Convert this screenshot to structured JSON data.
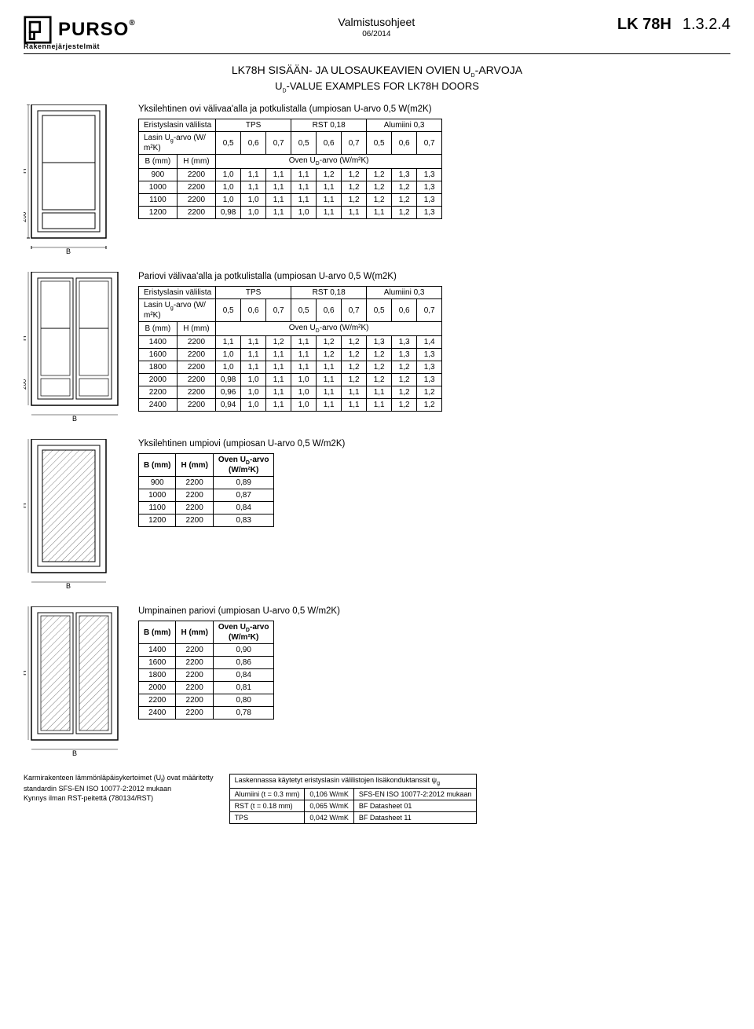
{
  "header": {
    "brand": "PURSO",
    "brand_sub": "Rakennejärjestelmät",
    "doc_type": "Valmistusohjeet",
    "date": "06/2014",
    "code": "LK 78H",
    "version": "1.3.2.4"
  },
  "title": {
    "main": "LK78H SISÄÄN- JA ULOSAUKEAVIEN OVIEN U_D-ARVOJA",
    "sub": "U_D-VALUE EXAMPLES FOR LK78H DOORS"
  },
  "sec1": {
    "title": "Yksilehtinen ovi välivaa'alla ja potkulistalla (umpiosan U-arvo 0,5 W(m2K)",
    "spacer_label": "Eristyslasin välilista",
    "spacer_cols": [
      "TPS",
      "RST 0,18",
      "Alumiini 0,3"
    ],
    "ug_label": "Lasin Ug-arvo (W/m²K)",
    "ug_vals": [
      "0,5",
      "0,6",
      "0,7",
      "0,5",
      "0,6",
      "0,7",
      "0,5",
      "0,6",
      "0,7"
    ],
    "bh_label_b": "B (mm)",
    "bh_label_h": "H (mm)",
    "ud_label": "Oven U_D-arvo (W/m²K)",
    "rows": [
      {
        "b": "900",
        "h": "2200",
        "v": [
          "1,0",
          "1,1",
          "1,1",
          "1,1",
          "1,2",
          "1,2",
          "1,2",
          "1,3",
          "1,3"
        ]
      },
      {
        "b": "1000",
        "h": "2200",
        "v": [
          "1,0",
          "1,1",
          "1,1",
          "1,1",
          "1,1",
          "1,2",
          "1,2",
          "1,2",
          "1,3"
        ]
      },
      {
        "b": "1100",
        "h": "2200",
        "v": [
          "1,0",
          "1,0",
          "1,1",
          "1,1",
          "1,1",
          "1,2",
          "1,2",
          "1,2",
          "1,3"
        ]
      },
      {
        "b": "1200",
        "h": "2200",
        "v": [
          "0,98",
          "1,0",
          "1,1",
          "1,0",
          "1,1",
          "1,1",
          "1,1",
          "1,2",
          "1,3"
        ]
      }
    ]
  },
  "sec2": {
    "title": "Pariovi välivaa'alla ja potkulistalla (umpiosan U-arvo 0,5 W(m2K)",
    "spacer_label": "Eristyslasin välilista",
    "spacer_cols": [
      "TPS",
      "RST 0,18",
      "Alumiini 0,3"
    ],
    "ug_label": "Lasin Ug-arvo (W/m²K)",
    "ug_vals": [
      "0,5",
      "0,6",
      "0,7",
      "0,5",
      "0,6",
      "0,7",
      "0,5",
      "0,6",
      "0,7"
    ],
    "bh_label_b": "B (mm)",
    "bh_label_h": "H (mm)",
    "ud_label": "Oven U_D-arvo (W/m²K)",
    "rows": [
      {
        "b": "1400",
        "h": "2200",
        "v": [
          "1,1",
          "1,1",
          "1,2",
          "1,1",
          "1,2",
          "1,2",
          "1,3",
          "1,3",
          "1,4"
        ]
      },
      {
        "b": "1600",
        "h": "2200",
        "v": [
          "1,0",
          "1,1",
          "1,1",
          "1,1",
          "1,2",
          "1,2",
          "1,2",
          "1,3",
          "1,3"
        ]
      },
      {
        "b": "1800",
        "h": "2200",
        "v": [
          "1,0",
          "1,1",
          "1,1",
          "1,1",
          "1,1",
          "1,2",
          "1,2",
          "1,2",
          "1,3"
        ]
      },
      {
        "b": "2000",
        "h": "2200",
        "v": [
          "0,98",
          "1,0",
          "1,1",
          "1,0",
          "1,1",
          "1,2",
          "1,2",
          "1,2",
          "1,3"
        ]
      },
      {
        "b": "2200",
        "h": "2200",
        "v": [
          "0,96",
          "1,0",
          "1,1",
          "1,0",
          "1,1",
          "1,1",
          "1,1",
          "1,2",
          "1,2"
        ]
      },
      {
        "b": "2400",
        "h": "2200",
        "v": [
          "0,94",
          "1,0",
          "1,1",
          "1,0",
          "1,1",
          "1,1",
          "1,1",
          "1,2",
          "1,2"
        ]
      }
    ]
  },
  "sec3": {
    "title": "Yksilehtinen umpiovi (umpiosan U-arvo 0,5 W/m2K)",
    "cols": [
      "B (mm)",
      "H (mm)",
      "Oven U_D-arvo (W/m²K)"
    ],
    "rows": [
      {
        "b": "900",
        "h": "2200",
        "u": "0,89"
      },
      {
        "b": "1000",
        "h": "2200",
        "u": "0,87"
      },
      {
        "b": "1100",
        "h": "2200",
        "u": "0,84"
      },
      {
        "b": "1200",
        "h": "2200",
        "u": "0,83"
      }
    ]
  },
  "sec4": {
    "title": "Umpinainen pariovi (umpiosan U-arvo 0,5 W/m2K)",
    "cols": [
      "B (mm)",
      "H (mm)",
      "Oven U_D-arvo (W/m²K)"
    ],
    "rows": [
      {
        "b": "1400",
        "h": "2200",
        "u": "0,90"
      },
      {
        "b": "1600",
        "h": "2200",
        "u": "0,86"
      },
      {
        "b": "1800",
        "h": "2200",
        "u": "0,84"
      },
      {
        "b": "2000",
        "h": "2200",
        "u": "0,81"
      },
      {
        "b": "2200",
        "h": "2200",
        "u": "0,80"
      },
      {
        "b": "2400",
        "h": "2200",
        "u": "0,78"
      }
    ]
  },
  "footnotes": {
    "left1": "Karmirakenteen lämmönläpäisykertoimet (U_f) ovat määritetty",
    "left2": "standardin SFS-EN ISO 10077-2:2012 mukaan",
    "left3": "Kynnys ilman RST-peitettä (780134/RST)",
    "table_title": "Laskennassa käytetyt eristyslasin välilistojen lisäkonduktanssit ψ_g",
    "rows": [
      {
        "a": "Alumiini (t = 0.3 mm)",
        "b": "0,106 W/mK",
        "c": "SFS-EN ISO 10077-2:2012 mukaan"
      },
      {
        "a": "RST (t = 0.18 mm)",
        "b": "0,065 W/mK",
        "c": "BF Datasheet 01"
      },
      {
        "a": "TPS",
        "b": "0,042 W/mK",
        "c": "BF Datasheet 11"
      }
    ]
  },
  "labels": {
    "B": "B",
    "H": "H",
    "v200": "200"
  }
}
